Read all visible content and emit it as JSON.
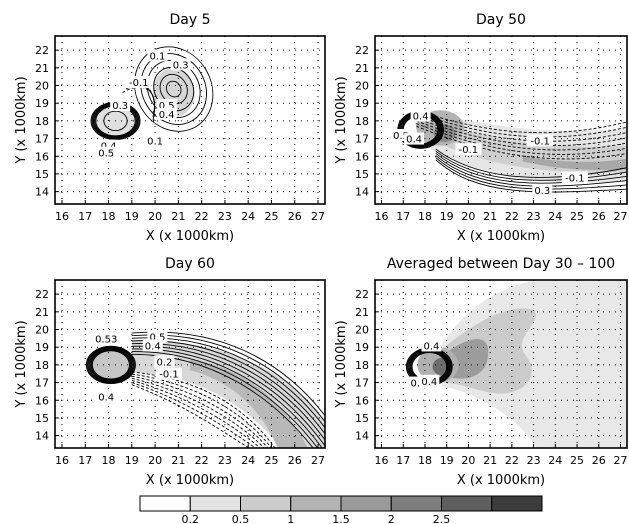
{
  "chart_data": [
    {
      "type": "contour",
      "title": "Day 5",
      "xlabel": "X (x 1000km)",
      "ylabel": "Y (x 1000km)",
      "xlim": [
        15.7,
        27.3
      ],
      "ylim": [
        13.3,
        22.8
      ],
      "xticks": [
        16,
        17,
        18,
        19,
        20,
        21,
        22,
        23,
        24,
        25,
        26,
        27
      ],
      "yticks": [
        14,
        15,
        16,
        17,
        18,
        19,
        20,
        21,
        22
      ],
      "grid": true,
      "contour_labels": [
        {
          "text": "0.1",
          "x": 20.1,
          "y": 21.7
        },
        {
          "text": "0.3",
          "x": 21.1,
          "y": 21.2
        },
        {
          "text": "-0.1",
          "x": 19.3,
          "y": 20.2
        },
        {
          "text": "0.3",
          "x": 18.5,
          "y": 18.9
        },
        {
          "text": "0.5",
          "x": 20.5,
          "y": 18.9
        },
        {
          "text": "0.4",
          "x": 20.5,
          "y": 18.4
        },
        {
          "text": "0.1",
          "x": 20.0,
          "y": 16.9
        },
        {
          "text": "0.4",
          "x": 18.0,
          "y": 16.6
        },
        {
          "text": "0.5",
          "x": 17.9,
          "y": 16.2
        }
      ]
    },
    {
      "type": "contour",
      "title": "Day 50",
      "xlabel": "X (x 1000km)",
      "ylabel": "Y (x 1000km)",
      "xlim": [
        15.7,
        27.3
      ],
      "ylim": [
        13.3,
        22.8
      ],
      "xticks": [
        16,
        17,
        18,
        19,
        20,
        21,
        22,
        23,
        24,
        25,
        26,
        27
      ],
      "yticks": [
        14,
        15,
        16,
        17,
        18,
        19,
        20,
        21,
        22
      ],
      "grid": true,
      "contour_labels": [
        {
          "text": "0.4",
          "x": 17.8,
          "y": 18.3
        },
        {
          "text": "0.5",
          "x": 16.9,
          "y": 17.2
        },
        {
          "text": "0.4",
          "x": 17.5,
          "y": 17.0
        },
        {
          "text": "-0.1",
          "x": 20.0,
          "y": 16.4
        },
        {
          "text": "-0.1",
          "x": 23.3,
          "y": 16.9
        },
        {
          "text": "-0.1",
          "x": 24.9,
          "y": 14.8
        },
        {
          "text": "0.3",
          "x": 23.4,
          "y": 14.1
        }
      ]
    },
    {
      "type": "contour",
      "title": "Day 60",
      "xlabel": "X (x 1000km)",
      "ylabel": "Y (x 1000km)",
      "xlim": [
        15.7,
        27.3
      ],
      "ylim": [
        13.3,
        22.8
      ],
      "xticks": [
        16,
        17,
        18,
        19,
        20,
        21,
        22,
        23,
        24,
        25,
        26,
        27
      ],
      "yticks": [
        14,
        15,
        16,
        17,
        18,
        19,
        20,
        21,
        22
      ],
      "grid": true,
      "contour_labels": [
        {
          "text": "0.53",
          "x": 17.9,
          "y": 19.5
        },
        {
          "text": "0.5",
          "x": 20.1,
          "y": 19.6
        },
        {
          "text": "0.4",
          "x": 19.9,
          "y": 19.1
        },
        {
          "text": "0.2",
          "x": 20.4,
          "y": 18.2
        },
        {
          "text": "-0.1",
          "x": 20.6,
          "y": 17.5
        },
        {
          "text": "0.4",
          "x": 17.9,
          "y": 16.2
        }
      ]
    },
    {
      "type": "contour",
      "title": "Averaged between Day 30 – 100",
      "xlabel": "X (x 1000km)",
      "ylabel": "Y (x 1000km)",
      "xlim": [
        15.7,
        27.3
      ],
      "ylim": [
        13.3,
        22.8
      ],
      "xticks": [
        16,
        17,
        18,
        19,
        20,
        21,
        22,
        23,
        24,
        25,
        26,
        27
      ],
      "yticks": [
        14,
        15,
        16,
        17,
        18,
        19,
        20,
        21,
        22
      ],
      "grid": true,
      "contour_labels": [
        {
          "text": "0.4",
          "x": 18.3,
          "y": 19.1
        },
        {
          "text": "0.5",
          "x": 17.7,
          "y": 17.0
        },
        {
          "text": "0.4",
          "x": 18.2,
          "y": 17.1
        }
      ]
    }
  ],
  "colorbar": {
    "labels": [
      "0.2",
      "0.5",
      "1",
      "1.5",
      "2",
      "2.5"
    ],
    "colors": [
      "#ffffff",
      "#e3e3e3",
      "#cccccc",
      "#b3b3b3",
      "#9a9a9a",
      "#7d7d7d",
      "#5e5e5e",
      "#3c3c3c"
    ]
  }
}
